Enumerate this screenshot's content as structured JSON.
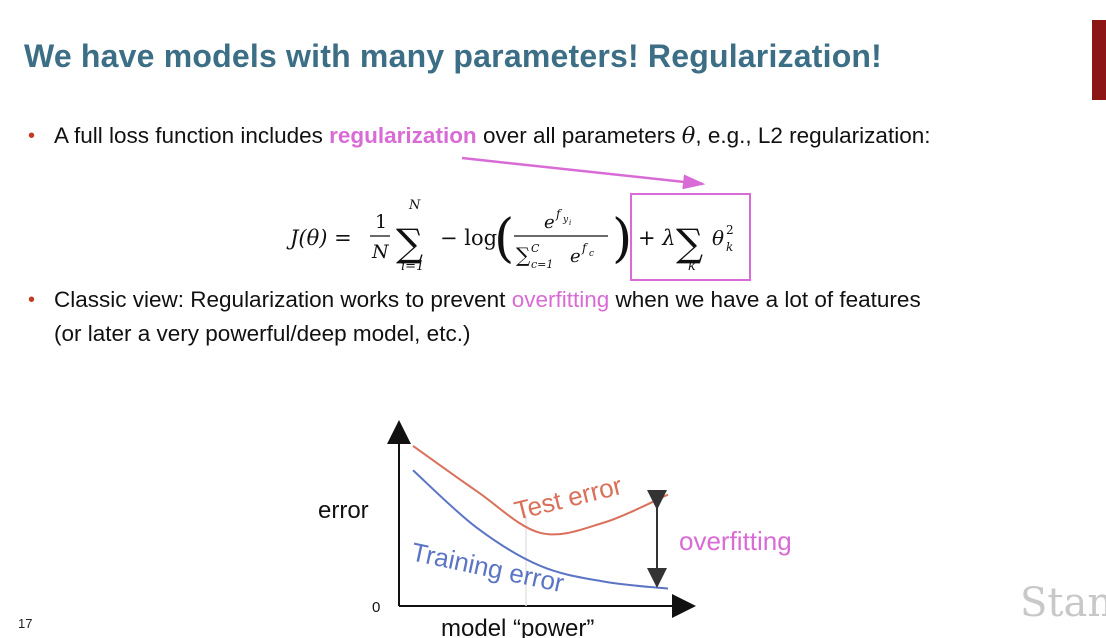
{
  "slide": {
    "title": "We have models with many parameters! Regularization!",
    "bullet1": {
      "before": "A full loss function includes ",
      "highlight": "regularization",
      "after_a": " over all parameters ",
      "theta": "θ",
      "after_b": ", e.g., L2 regularization:"
    },
    "formula": {
      "lhs": "J(θ) =",
      "frac_num": "1",
      "frac_den": "N",
      "sum_top": "N",
      "sum_bottom": "i=1",
      "neg_log": "− log",
      "inner_num": "e",
      "inner_num_sup": "f",
      "inner_num_subsub": "y",
      "inner_num_subsubsub": "i",
      "inner_den_sum": "∑",
      "inner_den_top": "C",
      "inner_den_bottom": "c=1",
      "inner_den_e": "e",
      "inner_den_sup": "f",
      "inner_den_subsub": "c",
      "plus_lambda": "+ λ",
      "reg_sum_bottom": "k",
      "reg_theta": "θ",
      "reg_sup": "2",
      "reg_sub": "k"
    },
    "bullet2": {
      "line1_before": "Classic view: Regularization works to prevent ",
      "highlight": "overfitting",
      "line1_after": " when we have a lot of features",
      "line2": "(or later a very powerful/deep model, etc.)"
    },
    "slide_number": "17",
    "logo_text": "Stan",
    "colors": {
      "title": "#3c6e86",
      "highlight": "#d96bd6",
      "test_curve": "#d9705a",
      "train_curve": "#5b74c4",
      "bullet": "#c23b22"
    }
  },
  "chart_data": {
    "type": "line",
    "title": "",
    "xlabel": "model “power”",
    "ylabel": "error",
    "y_zero_label": "0",
    "annotation": "overfitting",
    "series": [
      {
        "name": "Test error",
        "values": [
          0.92,
          0.66,
          0.42,
          0.48,
          0.64
        ]
      },
      {
        "name": "Training error",
        "values": [
          0.78,
          0.45,
          0.23,
          0.14,
          0.1
        ]
      }
    ],
    "x": [
      0,
      0.25,
      0.5,
      0.75,
      1.0
    ],
    "grid": false
  }
}
